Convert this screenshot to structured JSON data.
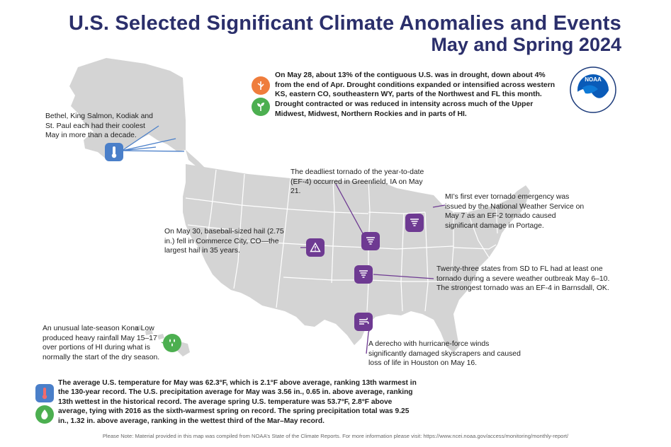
{
  "title": {
    "line1": "U.S. Selected Significant Climate Anomalies and Events",
    "line2": "May and Spring 2024"
  },
  "logo": {
    "text": "NOAA",
    "ring_text": "NATIONAL OCEANIC AND ATMOSPHERIC ADMINISTRATION",
    "ring_bottom": "U.S. DEPARTMENT OF COMMERCE"
  },
  "colors": {
    "title": "#2b2f6b",
    "purple": "#6e3a92",
    "green": "#4caf50",
    "orange": "#ef7d3c",
    "blue": "#4a7fc9",
    "map_gray": "#d6d6d6"
  },
  "notes": {
    "drought": "On May 28, about 13% of the contiguous U.S. was in drought, down about 4% from the end of Apr. Drought conditions expanded or intensified across western KS, eastern CO, southeastern WY, parts of the Northwest and FL this month. Drought contracted or was reduced in intensity across much of the Upper Midwest, Midwest, Northern Rockies and in parts of HI.",
    "alaska": "Bethel, King Salmon, Kodiak and St. Paul each had their coolest May in more than a decade.",
    "greenfield": "The deadliest tornado of the year-to-date (EF-4) occurred in Greenfield, IA on May 21.",
    "michigan": "MI’s first ever tornado emergency was issued by the National Weather Service on May 7 as an EF-2 tornado caused significant damage in Portage.",
    "hail": "On May 30, baseball-sized hail (2.75 in.) fell in Commerce City, CO—the largest hail in 35 years.",
    "outbreak": "Twenty-three states from SD to FL had at least one tornado during a severe weather outbreak May 6–10. The strongest tornado was an EF-4 in Barnsdall, OK.",
    "hawaii": "An unusual late-season Kona Low produced heavy rainfall May 15–17 over portions of HI during what is normally the start of the dry season.",
    "derecho": "A derecho with hurricane-force winds significantly damaged skyscrapers and caused loss of life in Houston on May 16.",
    "summary": "The average U.S. temperature for May was 62.3°F, which is 2.1°F above average, ranking 13th warmest in the 130-year record. The U.S. precipitation average for May was 3.56 in., 0.65 in. above average, ranking 13th wettest in the historical record. The average spring U.S. temperature was 53.7°F, 2.8°F above average, tying with 2016 as the sixth-warmest spring on record. The spring precipitation total was 9.25 in., 1.32 in. above average, ranking in the wettest third of the Mar–May record."
  },
  "icons": {
    "drought": "drought-cracked-earth-icon",
    "wet": "plant-sprout-icon",
    "alaska": "thermometer-cold-icon",
    "tornado": "tornado-icon",
    "hail": "warning-triangle-icon",
    "wind": "wind-icon",
    "rain": "raindrops-icon",
    "temp": "thermometer-icon",
    "precip": "water-drop-icon"
  },
  "footer": "Please Note: Material provided in this map was compiled from NOAA’s State of the Climate Reports. For more information please visit: https://www.ncei.noaa.gov/access/monitoring/monthly-report/"
}
